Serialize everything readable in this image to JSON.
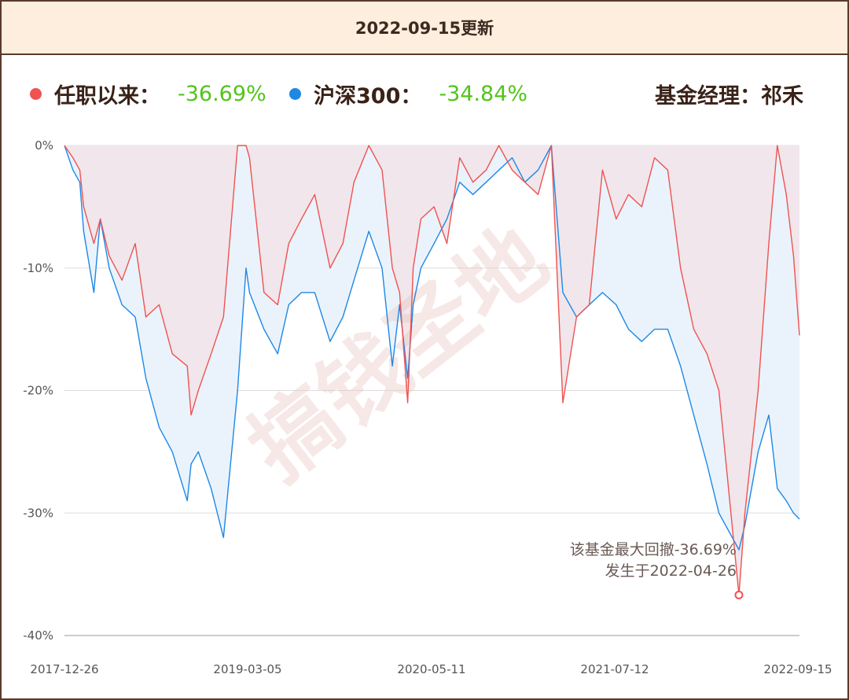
{
  "header": {
    "title": "2022-09-15更新"
  },
  "legend": {
    "fund_label": "任职以来：",
    "fund_value": "-36.69%",
    "index_label": "沪深300：",
    "index_value": "-34.84%",
    "manager": "基金经理：祁禾"
  },
  "colors": {
    "fund": "#ef5350",
    "index": "#1e88e5",
    "fund_fill": "#f1e6ec",
    "index_fill": "#eaf3fc",
    "value_green": "#52c41a"
  },
  "watermark": "搞钱圣地",
  "annotation": {
    "line1": "该基金最大回撤-36.69%",
    "line2": "发生于2022-04-26"
  },
  "chart_data": {
    "type": "area",
    "title": "",
    "xlabel": "",
    "ylabel": "",
    "x_range": [
      "2017-12-26",
      "2022-09-15"
    ],
    "x_ticks": [
      "2017-12-26",
      "2019-03-05",
      "2020-05-11",
      "2021-07-12",
      "2022-09-15"
    ],
    "y_ticks": [
      "0%",
      "-10%",
      "-20%",
      "-30%",
      "-40%"
    ],
    "ylim": [
      -40,
      0
    ],
    "y_unit": "%",
    "grid": true,
    "max_drawdown": {
      "date": "2022-04-26",
      "value": -36.69
    },
    "series": [
      {
        "name": "任职以来",
        "x": [
          "2017-12-26",
          "2018-01-15",
          "2018-01-31",
          "2018-02-09",
          "2018-03-05",
          "2018-03-20",
          "2018-04-10",
          "2018-05-10",
          "2018-06-10",
          "2018-07-05",
          "2018-08-05",
          "2018-09-05",
          "2018-10-10",
          "2018-10-19",
          "2018-11-05",
          "2018-12-05",
          "2019-01-03",
          "2019-02-05",
          "2019-02-25",
          "2019-03-05",
          "2019-04-08",
          "2019-05-10",
          "2019-06-05",
          "2019-07-05",
          "2019-08-05",
          "2019-09-10",
          "2019-10-10",
          "2019-11-05",
          "2019-12-10",
          "2020-01-10",
          "2020-02-03",
          "2020-02-20",
          "2020-03-10",
          "2020-03-23",
          "2020-04-10",
          "2020-05-11",
          "2020-06-10",
          "2020-07-10",
          "2020-08-10",
          "2020-09-10",
          "2020-10-10",
          "2020-11-10",
          "2020-12-10",
          "2021-01-10",
          "2021-02-10",
          "2021-03-09",
          "2021-04-10",
          "2021-05-10",
          "2021-06-10",
          "2021-07-12",
          "2021-08-10",
          "2021-09-10",
          "2021-10-10",
          "2021-11-10",
          "2021-12-10",
          "2022-01-10",
          "2022-02-10",
          "2022-03-10",
          "2022-04-26",
          "2022-05-10",
          "2022-06-10",
          "2022-07-05",
          "2022-07-25",
          "2022-08-15",
          "2022-09-01",
          "2022-09-15"
        ],
        "values": [
          0,
          -1,
          -2,
          -5,
          -8,
          -6,
          -9,
          -11,
          -8,
          -14,
          -13,
          -17,
          -18,
          -22,
          -20,
          -17,
          -14,
          0,
          0,
          -1,
          -12,
          -13,
          -8,
          -6,
          -4,
          -10,
          -8,
          -3,
          0,
          -2,
          -10,
          -12,
          -21,
          -10,
          -6,
          -5,
          -8,
          -1,
          -3,
          -2,
          0,
          -2,
          -3,
          -4,
          0,
          -21,
          -14,
          -13,
          -2,
          -6,
          -4,
          -5,
          -1,
          -2,
          -10,
          -15,
          -17,
          -20,
          -36.69,
          -30,
          -20,
          -8,
          0,
          -4,
          -9,
          -15.5
        ]
      },
      {
        "name": "沪深300",
        "x": [
          "2017-12-26",
          "2018-01-15",
          "2018-01-31",
          "2018-02-09",
          "2018-03-05",
          "2018-03-20",
          "2018-04-10",
          "2018-05-10",
          "2018-06-10",
          "2018-07-05",
          "2018-08-05",
          "2018-09-05",
          "2018-10-10",
          "2018-10-19",
          "2018-11-05",
          "2018-12-05",
          "2019-01-03",
          "2019-02-05",
          "2019-02-25",
          "2019-03-05",
          "2019-04-08",
          "2019-05-10",
          "2019-06-05",
          "2019-07-05",
          "2019-08-05",
          "2019-09-10",
          "2019-10-10",
          "2019-11-05",
          "2019-12-10",
          "2020-01-10",
          "2020-02-03",
          "2020-02-20",
          "2020-03-10",
          "2020-03-23",
          "2020-04-10",
          "2020-05-11",
          "2020-06-10",
          "2020-07-10",
          "2020-08-10",
          "2020-09-10",
          "2020-10-10",
          "2020-11-10",
          "2020-12-10",
          "2021-01-10",
          "2021-02-10",
          "2021-03-09",
          "2021-04-10",
          "2021-05-10",
          "2021-06-10",
          "2021-07-12",
          "2021-08-10",
          "2021-09-10",
          "2021-10-10",
          "2021-11-10",
          "2021-12-10",
          "2022-01-10",
          "2022-02-10",
          "2022-03-10",
          "2022-04-26",
          "2022-05-10",
          "2022-06-10",
          "2022-07-05",
          "2022-07-25",
          "2022-08-15",
          "2022-09-01",
          "2022-09-15"
        ],
        "values": [
          0,
          -2,
          -3,
          -7,
          -12,
          -6,
          -10,
          -13,
          -14,
          -19,
          -23,
          -25,
          -29,
          -26,
          -25,
          -28,
          -32,
          -20,
          -10,
          -12,
          -15,
          -17,
          -13,
          -12,
          -12,
          -16,
          -14,
          -11,
          -7,
          -10,
          -18,
          -13,
          -19,
          -13,
          -10,
          -8,
          -6,
          -3,
          -4,
          -3,
          -2,
          -1,
          -3,
          -2,
          0,
          -12,
          -14,
          -13,
          -12,
          -13,
          -15,
          -16,
          -15,
          -15,
          -18,
          -22,
          -26,
          -30,
          -33,
          -31,
          -25,
          -22,
          -28,
          -29,
          -30,
          -30.5
        ]
      }
    ]
  }
}
